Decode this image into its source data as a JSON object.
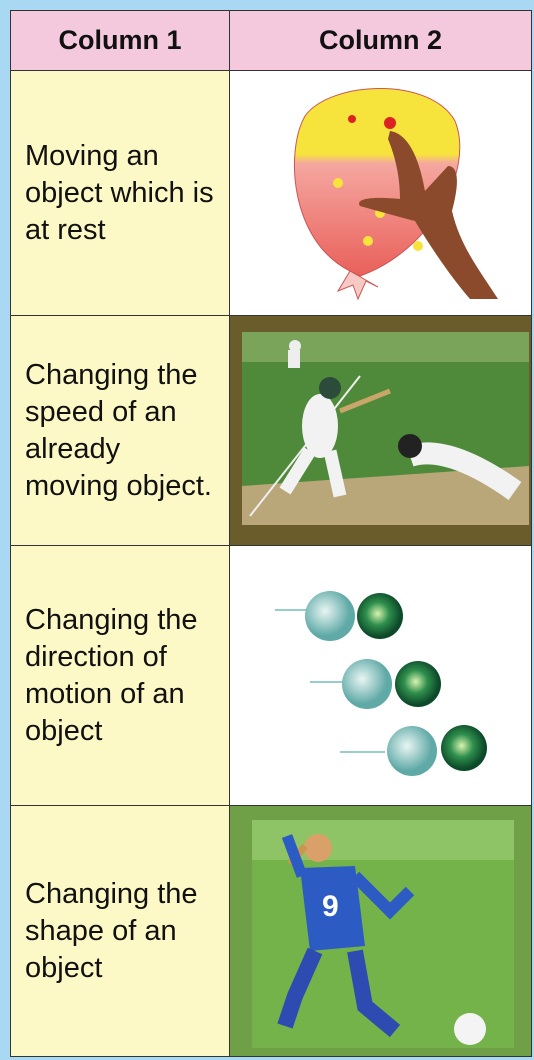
{
  "table": {
    "header": [
      "Column 1",
      "Column 2"
    ],
    "rows": [
      [
        "Moving an object which is at rest"
      ],
      [
        "Changing the speed of an already moving object."
      ],
      [
        "Changing the direction of motion of an object"
      ],
      [
        "Changing the shape of an object"
      ]
    ]
  }
}
